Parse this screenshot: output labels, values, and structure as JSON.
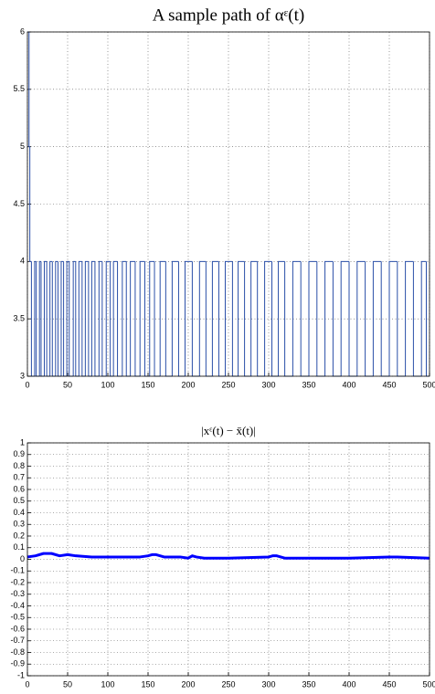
{
  "chart_data": [
    {
      "type": "line",
      "title": "A sample path of αᵋ(t)",
      "drawstyle": "steps-post",
      "grid": true,
      "xlim": [
        0,
        500
      ],
      "xticks": [
        0,
        50,
        100,
        150,
        200,
        250,
        300,
        350,
        400,
        450,
        500
      ],
      "ylim": [
        3,
        6
      ],
      "yticks": [
        3,
        3.5,
        4,
        4.5,
        5,
        5.5,
        6
      ],
      "series": [
        {
          "color": "#2a4fa8",
          "linewidth": 1,
          "x": [
            0,
            2,
            3,
            5,
            9,
            11,
            15,
            17,
            21,
            24,
            28,
            31,
            35,
            38,
            42,
            45,
            49,
            52,
            57,
            60,
            64,
            68,
            72,
            76,
            80,
            84,
            89,
            93,
            98,
            103,
            107,
            112,
            118,
            123,
            128,
            134,
            140,
            146,
            152,
            158,
            165,
            172,
            180,
            188,
            196,
            205,
            214,
            222,
            230,
            238,
            246,
            255,
            262,
            270,
            278,
            286,
            295,
            304,
            312,
            320,
            330,
            340,
            350,
            360,
            370,
            380,
            390,
            400,
            410,
            420,
            430,
            440,
            450,
            460,
            470,
            480,
            490,
            496
          ],
          "values": [
            6,
            5,
            4,
            3,
            4,
            3,
            4,
            3,
            4,
            3,
            4,
            3,
            4,
            3,
            4,
            3,
            4,
            3,
            4,
            3,
            4,
            3,
            4,
            3,
            4,
            3,
            4,
            3,
            4,
            3,
            4,
            3,
            4,
            3,
            4,
            3,
            4,
            3,
            4,
            3,
            4,
            3,
            4,
            3,
            4,
            3,
            4,
            3,
            4,
            3,
            4,
            3,
            4,
            3,
            4,
            3,
            4,
            3,
            4,
            3,
            4,
            3,
            4,
            3,
            4,
            3,
            4,
            3,
            4,
            3,
            4,
            3,
            4,
            3,
            4,
            3,
            4,
            3
          ]
        }
      ]
    },
    {
      "type": "line",
      "title": "|xᵋ(t) − x̄(t)|",
      "grid": true,
      "xlim": [
        0,
        500
      ],
      "xticks": [
        0,
        50,
        100,
        150,
        200,
        250,
        300,
        350,
        400,
        450,
        500
      ],
      "ylim": [
        -1,
        1
      ],
      "yticks": [
        -1,
        -0.9,
        -0.8,
        -0.7,
        -0.6,
        -0.5,
        -0.4,
        -0.3,
        -0.2,
        -0.1,
        0,
        0.1,
        0.2,
        0.3,
        0.4,
        0.5,
        0.6,
        0.7,
        0.8,
        0.9,
        1
      ],
      "series": [
        {
          "color": "#0000ff",
          "linewidth": 3,
          "x": [
            0,
            10,
            20,
            30,
            40,
            50,
            60,
            80,
            100,
            120,
            140,
            150,
            155,
            160,
            170,
            180,
            190,
            200,
            205,
            210,
            220,
            250,
            300,
            305,
            310,
            320,
            350,
            400,
            450,
            460,
            500
          ],
          "values": [
            0.02,
            0.03,
            0.05,
            0.05,
            0.03,
            0.04,
            0.03,
            0.02,
            0.02,
            0.02,
            0.02,
            0.03,
            0.04,
            0.04,
            0.02,
            0.02,
            0.02,
            0.01,
            0.03,
            0.02,
            0.01,
            0.01,
            0.02,
            0.03,
            0.03,
            0.01,
            0.01,
            0.01,
            0.02,
            0.02,
            0.01
          ]
        }
      ]
    }
  ]
}
